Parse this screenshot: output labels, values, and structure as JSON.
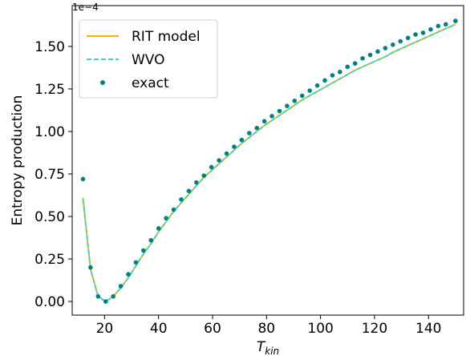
{
  "chart_data": {
    "type": "line",
    "xlabel": "T",
    "xlabel_sub": "kin",
    "ylabel": "Entropy production",
    "y_offset_label": "1e−4",
    "xlim": [
      8,
      153
    ],
    "ylim": [
      -0.08,
      1.74
    ],
    "x_ticks": [
      20,
      40,
      60,
      80,
      100,
      120,
      140
    ],
    "x_tick_labels": [
      "20",
      "40",
      "60",
      "80",
      "100",
      "120",
      "140"
    ],
    "y_ticks": [
      0.0,
      0.25,
      0.5,
      0.75,
      1.0,
      1.25,
      1.5
    ],
    "y_tick_labels": [
      "0.00",
      "0.25",
      "0.50",
      "0.75",
      "1.00",
      "1.25",
      "1.50"
    ],
    "legend_position": "top-left",
    "series": [
      {
        "name": "RIT model",
        "style": "solid",
        "color": "#ffb000",
        "x": [
          12,
          14.8,
          17.6,
          20.4,
          23.2,
          26,
          28.8,
          31.6,
          34.4,
          37.2,
          40,
          42.8,
          45.6,
          48.4,
          51.2,
          54,
          56.8,
          59.6,
          62.4,
          65.2,
          68,
          70.8,
          73.6,
          76.4,
          79.2,
          82,
          84.8,
          87.6,
          90.4,
          93.2,
          96,
          98.8,
          101.6,
          104.4,
          107.2,
          110,
          112.8,
          115.6,
          118.4,
          121.2,
          124,
          126.8,
          129.6,
          132.4,
          135.2,
          138,
          140.8,
          143.6,
          146.4,
          150
        ],
        "y": [
          0.61,
          0.19,
          0.03,
          0.0,
          0.03,
          0.08,
          0.14,
          0.21,
          0.28,
          0.34,
          0.41,
          0.47,
          0.53,
          0.58,
          0.63,
          0.68,
          0.73,
          0.77,
          0.81,
          0.85,
          0.89,
          0.93,
          0.965,
          1.0,
          1.035,
          1.065,
          1.095,
          1.125,
          1.155,
          1.185,
          1.21,
          1.235,
          1.26,
          1.285,
          1.31,
          1.335,
          1.36,
          1.38,
          1.4,
          1.42,
          1.44,
          1.465,
          1.485,
          1.505,
          1.525,
          1.545,
          1.565,
          1.585,
          1.605,
          1.63
        ]
      },
      {
        "name": "WVO",
        "style": "dashed",
        "color": "#3fd3d6",
        "x": [
          12,
          14.8,
          17.6,
          20.4,
          23.2,
          26,
          28.8,
          31.6,
          34.4,
          37.2,
          40,
          42.8,
          45.6,
          48.4,
          51.2,
          54,
          56.8,
          59.6,
          62.4,
          65.2,
          68,
          70.8,
          73.6,
          76.4,
          79.2,
          82,
          84.8,
          87.6,
          90.4,
          93.2,
          96,
          98.8,
          101.6,
          104.4,
          107.2,
          110,
          112.8,
          115.6,
          118.4,
          121.2,
          124,
          126.8,
          129.6,
          132.4,
          135.2,
          138,
          140.8,
          143.6,
          146.4,
          150
        ],
        "y": [
          0.6,
          0.19,
          0.03,
          0.0,
          0.03,
          0.08,
          0.14,
          0.21,
          0.28,
          0.34,
          0.41,
          0.47,
          0.53,
          0.58,
          0.63,
          0.68,
          0.73,
          0.77,
          0.81,
          0.85,
          0.89,
          0.93,
          0.965,
          1.0,
          1.035,
          1.065,
          1.095,
          1.125,
          1.155,
          1.185,
          1.21,
          1.235,
          1.26,
          1.285,
          1.31,
          1.335,
          1.36,
          1.38,
          1.4,
          1.42,
          1.44,
          1.465,
          1.485,
          1.505,
          1.525,
          1.545,
          1.565,
          1.585,
          1.605,
          1.63
        ]
      },
      {
        "name": "exact",
        "style": "markers",
        "color": "#008080",
        "x": [
          12,
          14.8,
          17.6,
          20.4,
          23.2,
          26,
          28.8,
          31.6,
          34.4,
          37.2,
          40,
          42.8,
          45.6,
          48.4,
          51.2,
          54,
          56.8,
          59.6,
          62.4,
          65.2,
          68,
          70.8,
          73.6,
          76.4,
          79.2,
          82,
          84.8,
          87.6,
          90.4,
          93.2,
          96,
          98.8,
          101.6,
          104.4,
          107.2,
          110,
          112.8,
          115.6,
          118.4,
          121.2,
          124,
          126.8,
          129.6,
          132.4,
          135.2,
          138,
          140.8,
          143.6,
          146.4,
          150
        ],
        "y": [
          0.72,
          0.2,
          0.03,
          0.0,
          0.03,
          0.09,
          0.16,
          0.23,
          0.3,
          0.36,
          0.43,
          0.49,
          0.54,
          0.6,
          0.65,
          0.7,
          0.74,
          0.79,
          0.83,
          0.87,
          0.91,
          0.95,
          0.99,
          1.02,
          1.06,
          1.09,
          1.12,
          1.15,
          1.18,
          1.21,
          1.24,
          1.27,
          1.3,
          1.33,
          1.35,
          1.38,
          1.4,
          1.43,
          1.45,
          1.47,
          1.49,
          1.51,
          1.53,
          1.55,
          1.57,
          1.58,
          1.6,
          1.62,
          1.63,
          1.65
        ]
      }
    ]
  }
}
